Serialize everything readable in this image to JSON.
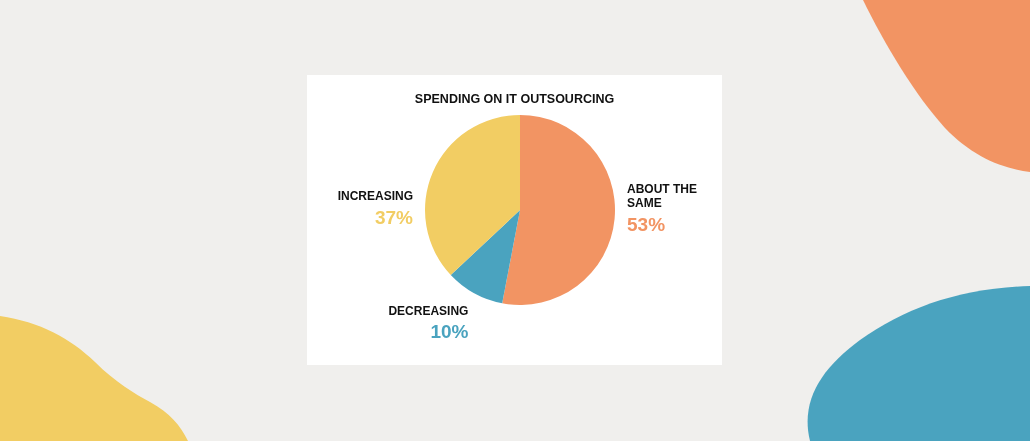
{
  "chart_data": {
    "type": "pie",
    "title": "SPENDING ON IT OUTSOURCING",
    "categories": [
      "ABOUT THE SAME",
      "DECREASING",
      "INCREASING"
    ],
    "values": [
      53,
      10,
      37
    ],
    "colors": [
      "#f29463",
      "#4aa3bf",
      "#f2cd63"
    ],
    "value_labels": [
      "53%",
      "10%",
      "37%"
    ]
  }
}
